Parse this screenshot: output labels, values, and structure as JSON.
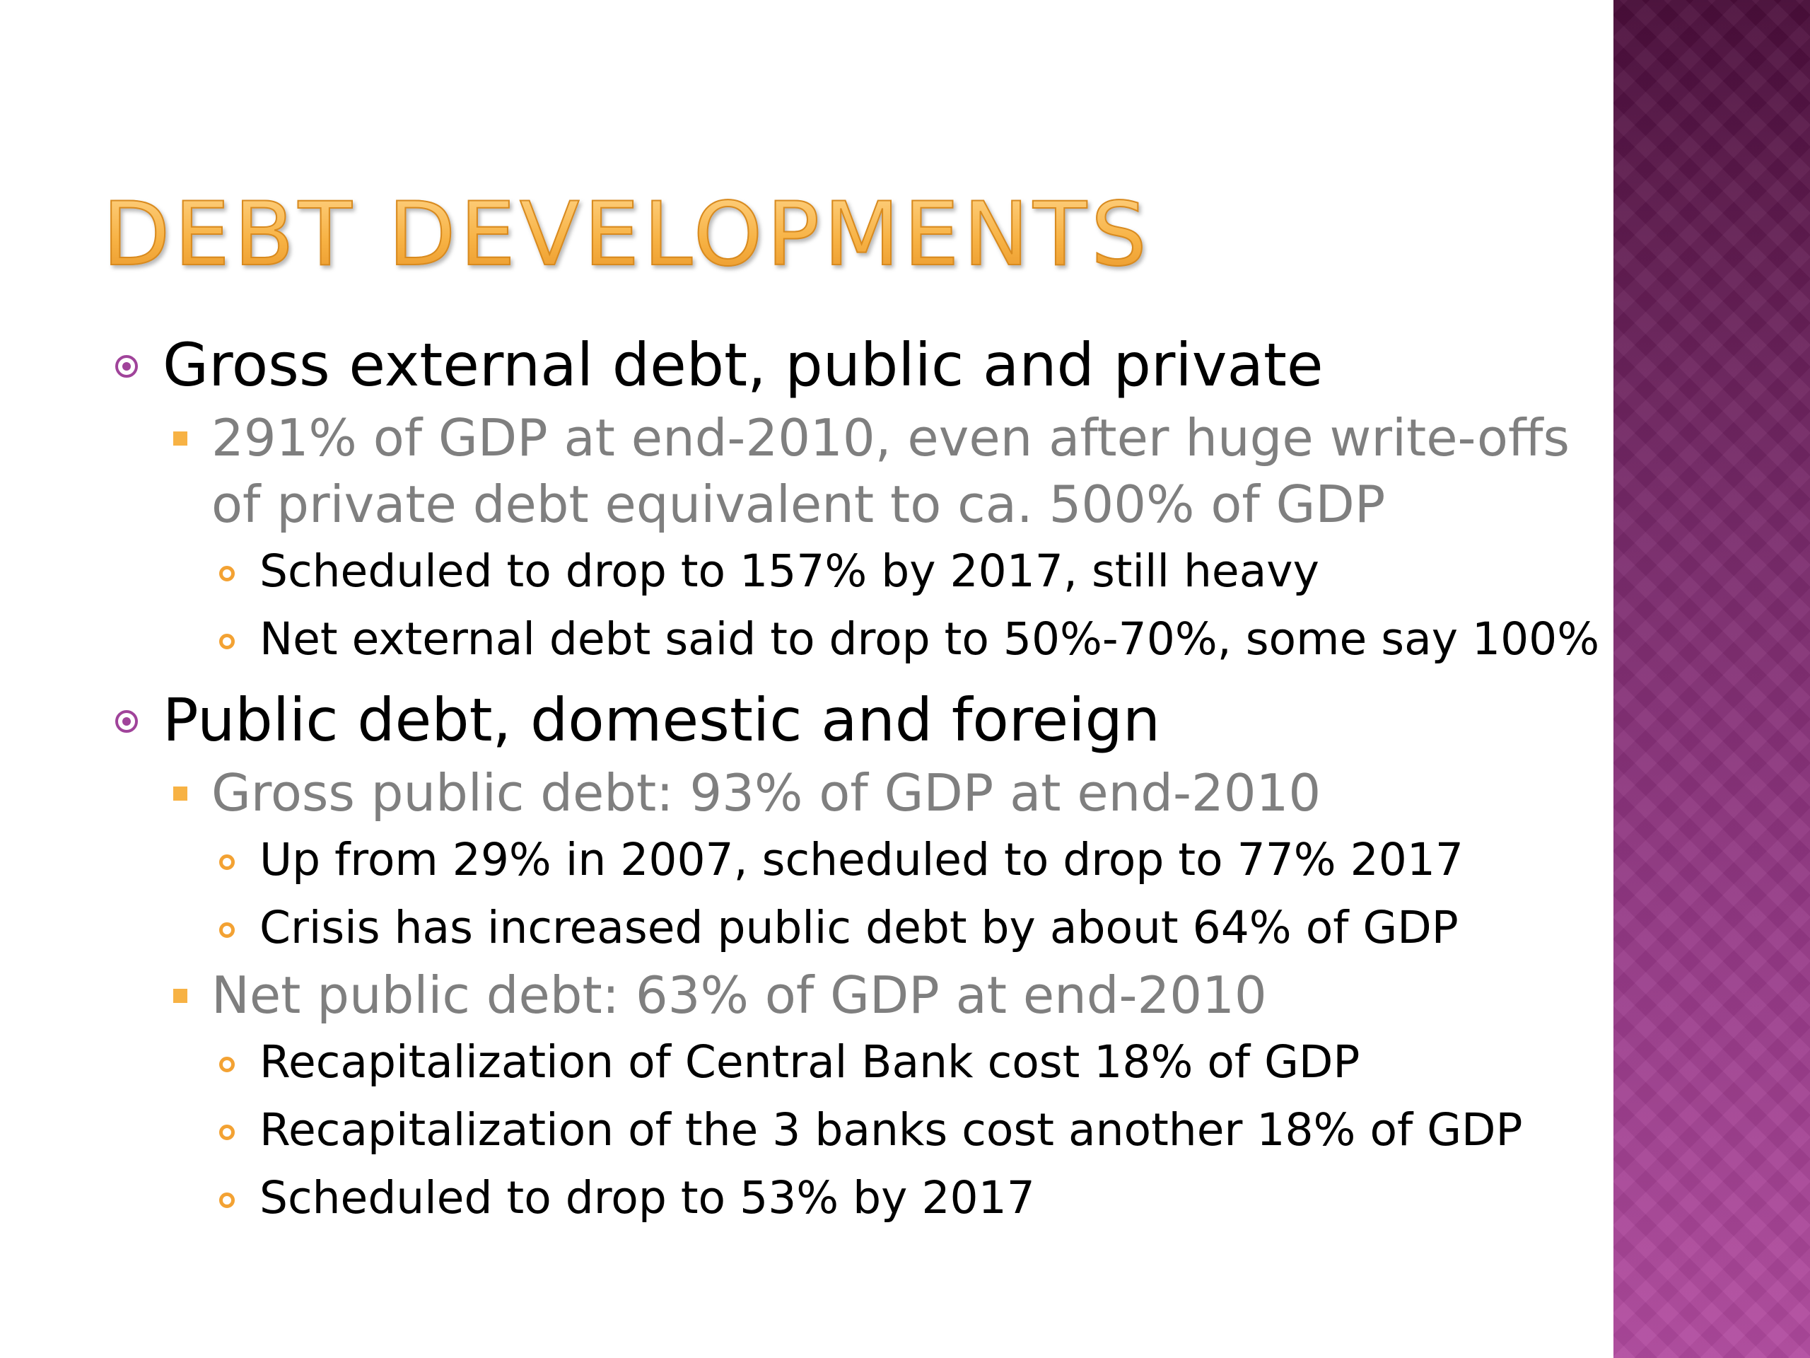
{
  "slide": {
    "title": "Debt Developments",
    "colors": {
      "title_gradient_top": "#ffd58a",
      "title_gradient_bottom": "#e79326",
      "level1_bullet": "#a0439a",
      "level2_bullet": "#f7b244",
      "level3_bullet": "#f3a233",
      "level2_text": "#7f7f7f",
      "side_band_top": "#4a0d3a",
      "side_band_bottom": "#b14a9f"
    },
    "bullets": {
      "gross_external": {
        "text": "Gross external debt, public and private",
        "icon": "circle-dot-bullet-icon",
        "sub": {
          "text": "291% of GDP at end-2010, even after huge write-offs of private debt equivalent to ca. 500% of GDP",
          "icon": "square-bullet-icon",
          "items": [
            "Scheduled to drop to 157% by 2017, still heavy",
            "Net external debt said to drop to 50%-70%, some say 100%"
          ]
        }
      },
      "public_debt": {
        "text": "Public debt, domestic and foreign",
        "icon": "circle-dot-bullet-icon",
        "gross": {
          "text": "Gross public debt: 93% of GDP at end-2010",
          "icon": "square-bullet-icon",
          "items": [
            "Up from 29% in 2007, scheduled to drop to 77% 2017",
            "Crisis has increased public debt by about 64% of GDP"
          ]
        },
        "net": {
          "text": "Net public debt: 63% of GDP at end-2010",
          "icon": "square-bullet-icon",
          "items": [
            "Recapitalization of Central Bank cost 18% of GDP",
            "Recapitalization of the 3 banks cost another 18% of GDP",
            "Scheduled to drop to 53% by 2017"
          ]
        }
      }
    }
  }
}
